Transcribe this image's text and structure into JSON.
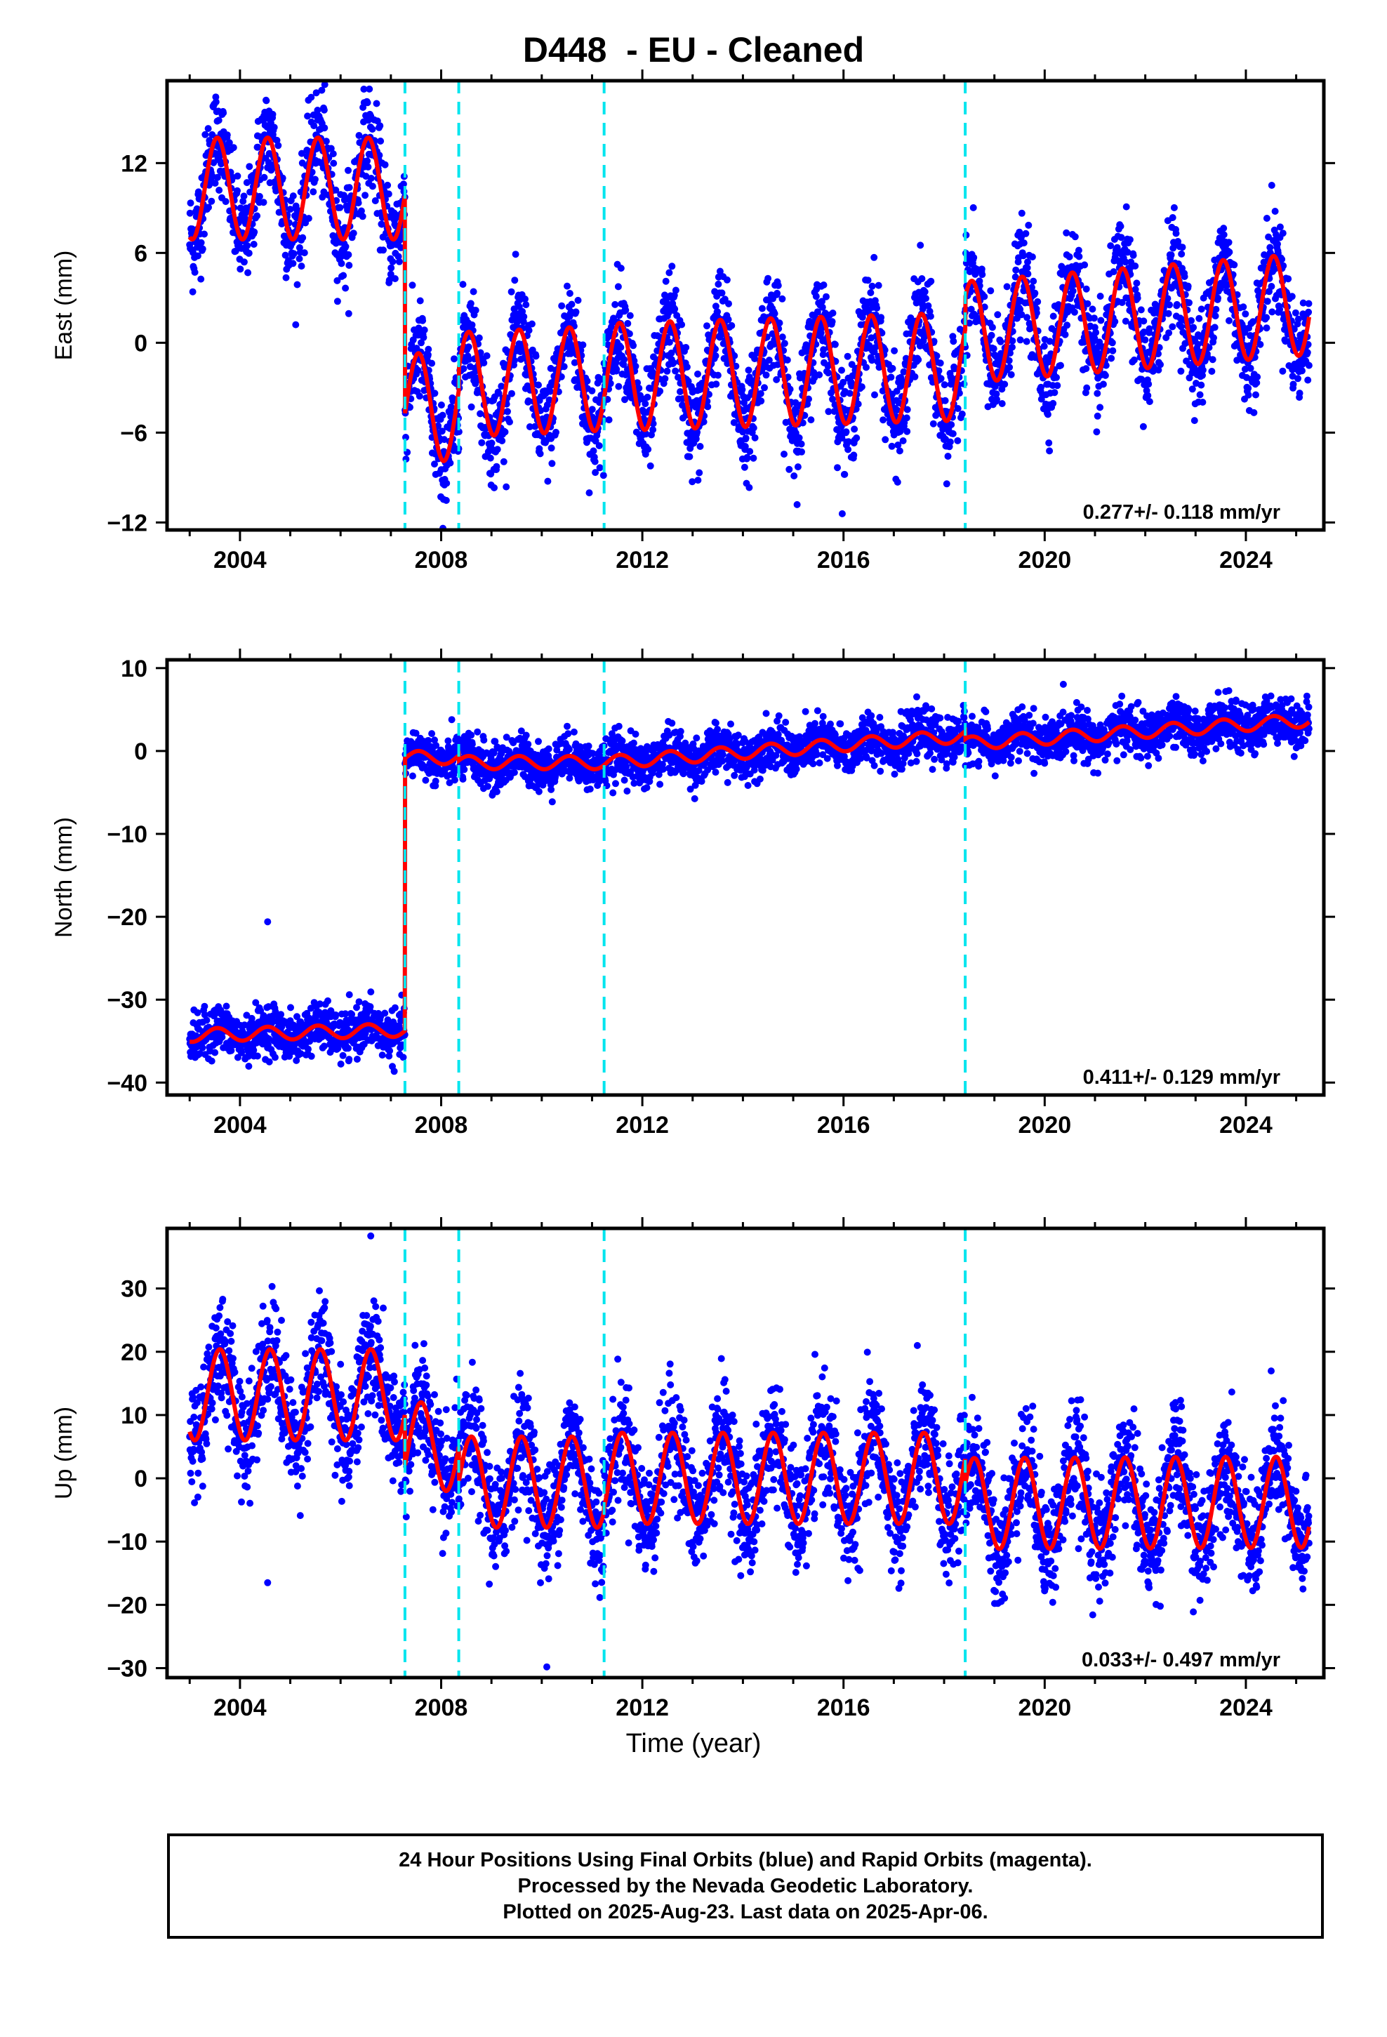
{
  "title": "D448  - EU - Cleaned",
  "xlabel": "Time (year)",
  "footer": {
    "line1": "24 Hour Positions Using Final Orbits (blue) and Rapid Orbits (magenta).",
    "line2": "Processed by the Nevada Geodetic Laboratory.",
    "line3": "Plotted on 2025-Aug-23. Last data on 2025-Apr-06."
  },
  "colors": {
    "data_points": "#0000ff",
    "model_line": "#ff0000",
    "breaks": "#00e5ee"
  },
  "chart_data": [
    {
      "type": "scatter",
      "component": "East",
      "ylabel": "East (mm)",
      "xlim": [
        2002.55,
        2025.55
      ],
      "ylim": [
        -12.5,
        17.5
      ],
      "xticks": [
        2004,
        2008,
        2012,
        2016,
        2020,
        2024
      ],
      "yticks": [
        -12,
        -6,
        0,
        6,
        12
      ],
      "rate_label": "0.277+/- 0.118 mm/yr",
      "breaks": [
        2007.28,
        2008.35,
        2011.24,
        2018.42
      ],
      "data_start": 2003.0,
      "data_end": 2025.26,
      "model_segments": [
        {
          "start": 2003.0,
          "end": 2007.28,
          "offset": 10.3,
          "trend": 0.0,
          "annual_amp": 3.4,
          "annual_phase": 0.3,
          "semi_amp": 0.0
        },
        {
          "start": 2007.28,
          "end": 2008.35,
          "offset": -4.3,
          "trend": 0.0,
          "annual_amp": 3.6,
          "annual_phase": 0.3,
          "semi_amp": 0.0
        },
        {
          "start": 2008.35,
          "end": 2011.24,
          "offset": -2.8,
          "trend": 0.15,
          "annual_amp": 3.5,
          "annual_phase": 0.3,
          "semi_amp": 0.0
        },
        {
          "start": 2011.24,
          "end": 2018.42,
          "offset": -2.3,
          "trend": 0.1,
          "annual_amp": 3.6,
          "annual_phase": 0.3,
          "semi_amp": 0.0
        },
        {
          "start": 2018.42,
          "end": 2025.26,
          "offset": 0.7,
          "trend": 0.277,
          "annual_amp": 3.4,
          "annual_phase": 0.3,
          "semi_amp": 0.0
        }
      ],
      "scatter_sd": 1.7
    },
    {
      "type": "scatter",
      "component": "North",
      "ylabel": "North (mm)",
      "xlim": [
        2002.55,
        2025.55
      ],
      "ylim": [
        -41.5,
        11.0
      ],
      "xticks": [
        2004,
        2008,
        2012,
        2016,
        2020,
        2024
      ],
      "yticks": [
        -40,
        -30,
        -20,
        -10,
        0,
        10
      ],
      "rate_label": "0.411+/- 0.129 mm/yr",
      "breaks": [
        2007.28,
        2008.35,
        2011.24,
        2018.42
      ],
      "data_start": 2003.0,
      "data_end": 2025.26,
      "model_segments": [
        {
          "start": 2003.0,
          "end": 2007.28,
          "offset": -34.3,
          "trend": 0.15,
          "annual_amp": 0.8,
          "annual_phase": 0.3,
          "semi_amp": 0.0
        },
        {
          "start": 2007.28,
          "end": 2008.35,
          "offset": -0.8,
          "trend": 0.0,
          "annual_amp": 0.8,
          "annual_phase": 0.3,
          "semi_amp": 0.0
        },
        {
          "start": 2008.35,
          "end": 2011.24,
          "offset": -1.4,
          "trend": 0.0,
          "annual_amp": 0.8,
          "annual_phase": 0.3,
          "semi_amp": 0.0
        },
        {
          "start": 2011.24,
          "end": 2018.42,
          "offset": -1.4,
          "trend": 0.45,
          "annual_amp": 0.8,
          "annual_phase": 0.3,
          "semi_amp": 0.0
        },
        {
          "start": 2018.42,
          "end": 2025.26,
          "offset": 0.9,
          "trend": 0.411,
          "annual_amp": 0.8,
          "annual_phase": 0.3,
          "semi_amp": 0.0
        }
      ],
      "scatter_sd": 1.4,
      "outliers": [
        {
          "x": 2004.55,
          "y": -20.6
        }
      ]
    },
    {
      "type": "scatter",
      "component": "Up",
      "ylabel": "Up (mm)",
      "xlim": [
        2002.55,
        2025.55
      ],
      "ylim": [
        -31.5,
        39.5
      ],
      "xticks": [
        2004,
        2008,
        2012,
        2016,
        2020,
        2024
      ],
      "yticks": [
        -30,
        -20,
        -10,
        0,
        10,
        20,
        30
      ],
      "rate_label": "0.033+/- 0.497 mm/yr",
      "breaks": [
        2007.28,
        2008.35,
        2011.24,
        2018.42
      ],
      "data_start": 2003.0,
      "data_end": 2025.26,
      "model_segments": [
        {
          "start": 2003.0,
          "end": 2007.28,
          "offset": 13.2,
          "trend": 0.0,
          "annual_amp": 7.2,
          "annual_phase": 0.35,
          "semi_amp": 0.0
        },
        {
          "start": 2007.28,
          "end": 2008.35,
          "offset": 5.0,
          "trend": 0.0,
          "annual_amp": 7.0,
          "annual_phase": 0.35,
          "semi_amp": 0.0
        },
        {
          "start": 2008.35,
          "end": 2011.24,
          "offset": -0.6,
          "trend": 0.0,
          "annual_amp": 7.2,
          "annual_phase": 0.35,
          "semi_amp": 0.0
        },
        {
          "start": 2011.24,
          "end": 2018.42,
          "offset": 0.0,
          "trend": 0.0,
          "annual_amp": 7.2,
          "annual_phase": 0.35,
          "semi_amp": 0.0
        },
        {
          "start": 2018.42,
          "end": 2025.26,
          "offset": -4.0,
          "trend": 0.033,
          "annual_amp": 7.2,
          "annual_phase": 0.35,
          "semi_amp": 0.0
        }
      ],
      "scatter_sd": 4.5,
      "outliers": [
        {
          "x": 2004.55,
          "y": -16.5
        },
        {
          "x": 2010.1,
          "y": -29.8
        },
        {
          "x": 2006.6,
          "y": 38.3
        }
      ]
    }
  ]
}
